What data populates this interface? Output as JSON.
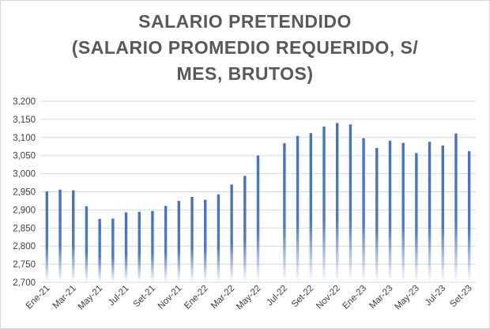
{
  "chart_data": {
    "type": "bar",
    "title": [
      "SALARIO PRETENDIDO",
      "(SALARIO PROMEDIO REQUERIDO, S/",
      "MES, BRUTOS)"
    ],
    "categories": [
      "Ene-21",
      "Feb-21",
      "Mar-21",
      "Abr-21",
      "May-21",
      "Jun-21",
      "Jul-21",
      "Ago-21",
      "Set-21",
      "Oct-21",
      "Nov-21",
      "Dic-21",
      "Ene-22",
      "Feb-22",
      "Mar-22",
      "Abr-22",
      "May-22",
      "Jun-22",
      "Jul-22",
      "Ago-22",
      "Set-22",
      "Oct-22",
      "Nov-22",
      "Dic-22",
      "Ene-23",
      "Feb-23",
      "Mar-23",
      "Abr-23",
      "May-23",
      "Jun-23",
      "Jul-23",
      "Ago-23",
      "Set-23"
    ],
    "x_tick_labels": [
      "Ene-21",
      "Mar-21",
      "May-21",
      "Jul-21",
      "Set-21",
      "Nov-21",
      "Ene-22",
      "Mar-22",
      "May-22",
      "Jul-22",
      "Set-22",
      "Nov-22",
      "Ene-23",
      "Mar-23",
      "May-23",
      "Jul-23",
      "Set-23"
    ],
    "values": [
      2951,
      2956,
      2954,
      2910,
      2875,
      2876,
      2893,
      2895,
      2897,
      2911,
      2925,
      2936,
      2928,
      2943,
      2970,
      2994,
      3050,
      null,
      3084,
      3104,
      3112,
      3130,
      3140,
      3136,
      3098,
      3071,
      3091,
      3085,
      3057,
      3088,
      3078,
      3111,
      3062
    ],
    "ylim": [
      2700,
      3200
    ],
    "yticks": [
      "2,700",
      "2,750",
      "2,800",
      "2,850",
      "2,900",
      "2,950",
      "3,000",
      "3,050",
      "3,100",
      "3,150",
      "3,200"
    ],
    "grid": true,
    "bar_color": "#4472c4"
  }
}
